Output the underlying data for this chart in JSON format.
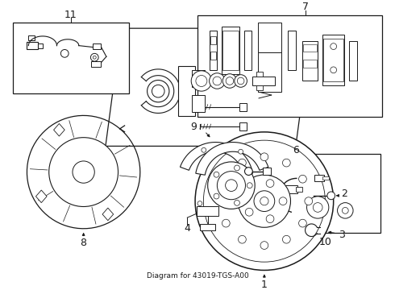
{
  "bg_color": "#ffffff",
  "line_color": "#1a1a1a",
  "fig_width": 4.9,
  "fig_height": 3.6,
  "dpi": 100
}
